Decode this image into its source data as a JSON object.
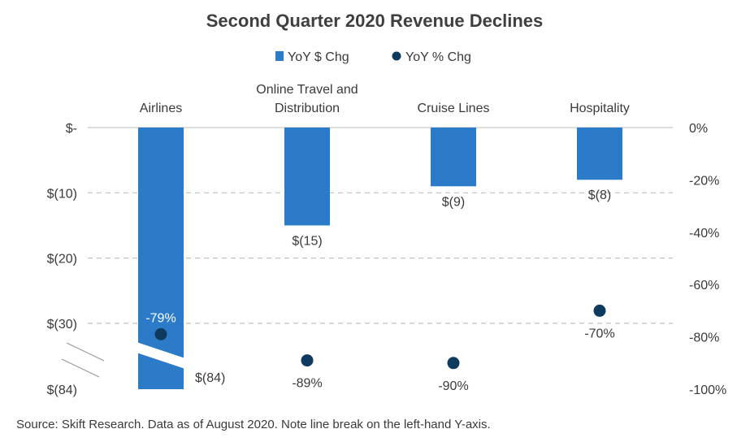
{
  "chart_data": {
    "type": "bar",
    "title": "Second Quarter 2020 Revenue Declines",
    "categories": [
      {
        "lines": [
          "Airlines"
        ]
      },
      {
        "lines": [
          "Online Travel and",
          "Distribution"
        ]
      },
      {
        "lines": [
          "Cruise Lines"
        ]
      },
      {
        "lines": [
          "Hospitality"
        ]
      }
    ],
    "series": [
      {
        "name": "YoY $ Chg",
        "kind": "bar",
        "axis": "left",
        "color": "#2b7bc8",
        "values": [
          -84,
          -15,
          -9,
          -8
        ],
        "labels": [
          "$(84)",
          "$(15)",
          "$(9)",
          "$(8)"
        ]
      },
      {
        "name": "YoY % Chg",
        "kind": "scatter",
        "axis": "right",
        "color": "#0f3a5f",
        "values": [
          -79,
          -89,
          -90,
          -70
        ],
        "labels": [
          "-79%",
          "-89%",
          "-90%",
          "-70%"
        ]
      }
    ],
    "left_axis": {
      "ticks": [
        0,
        -10,
        -20,
        -30,
        -84
      ],
      "tick_labels": [
        "$-",
        "$(10)",
        "$(20)",
        "$(30)",
        "$(84)"
      ],
      "axis_break": true
    },
    "right_axis": {
      "range": [
        -100,
        0
      ],
      "ticks": [
        0,
        -20,
        -40,
        -60,
        -80,
        -100
      ],
      "tick_labels": [
        "0%",
        "-20%",
        "-40%",
        "-60%",
        "-80%",
        "-100%"
      ]
    },
    "grid": "dashed horizontal",
    "legend_position": "top"
  },
  "source_note": "Source: Skift Research. Data as of August 2020. Note line break on the left-hand Y-axis."
}
